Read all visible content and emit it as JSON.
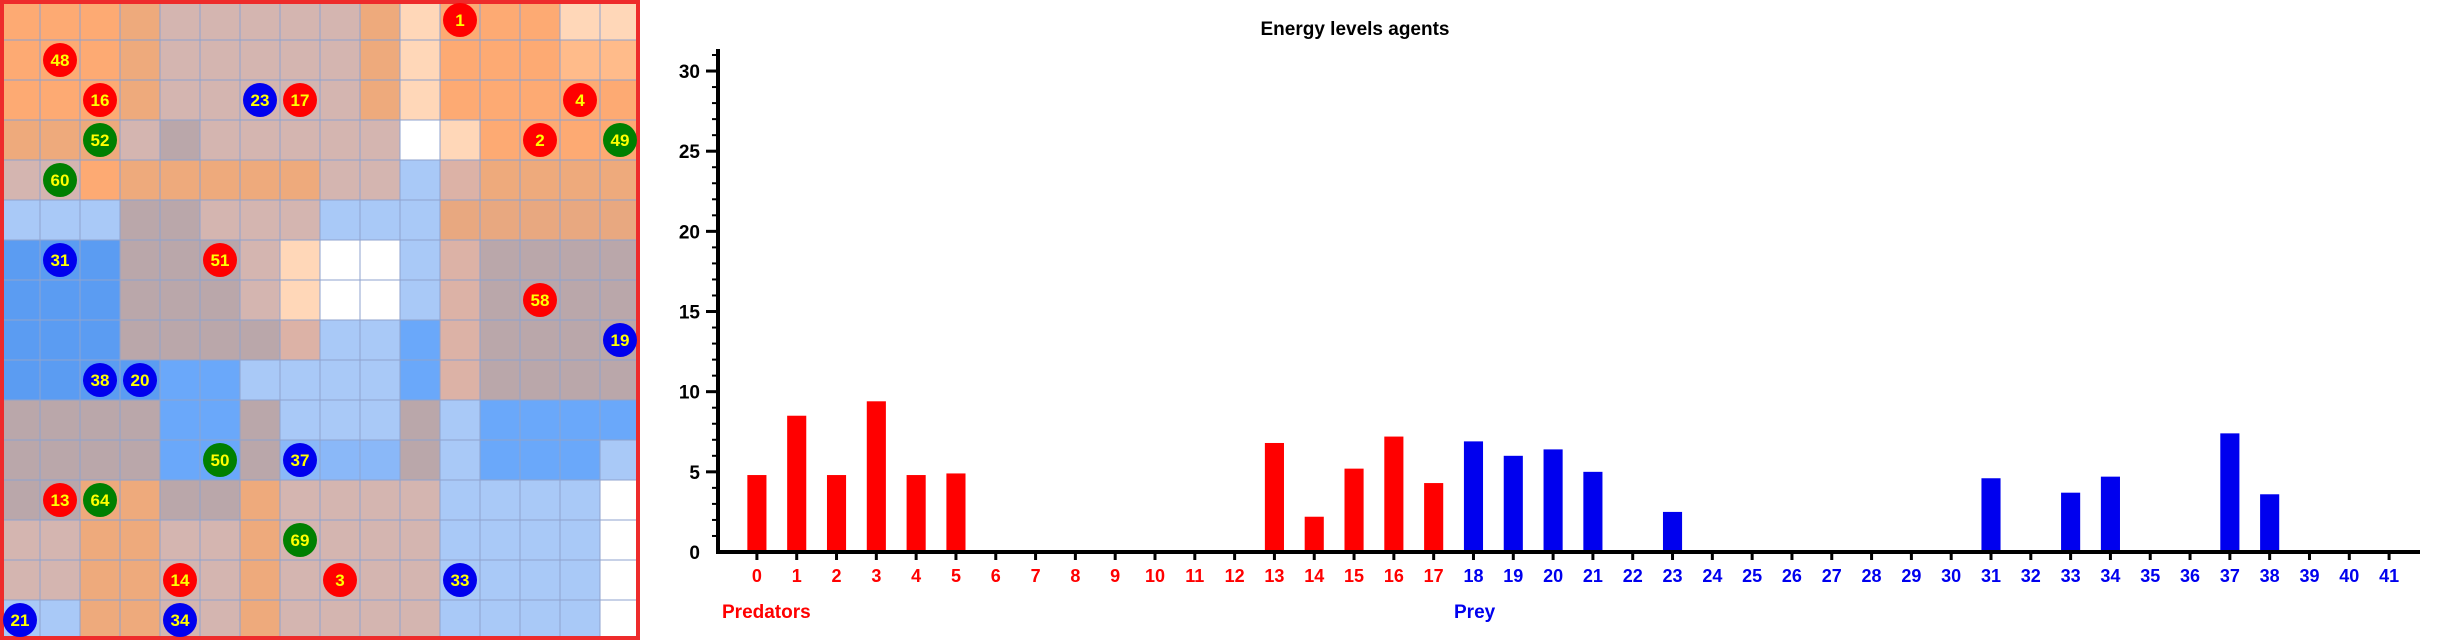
{
  "grid": {
    "size": 16,
    "palette": {
      "O1": "#ffd7b8",
      "O2": "#ffbb8a",
      "O3": "#fdaa73",
      "O4": "#eeaa7c",
      "O5": "#e8a880",
      "P1": "#dcb2a6",
      "P2": "#d4b5b0",
      "P3": "#c4aaa8",
      "M1": "#baa7aa",
      "M2": "#b3a4ab",
      "B0": "#c9d8f2",
      "B1": "#a9c9f7",
      "B2": "#8ab8f8",
      "B3": "#6aa8fa",
      "B4": "#5b9cf2",
      "W": "#ffffff"
    },
    "cells": [
      [
        "O3",
        "O3",
        "O3",
        "O4",
        "P2",
        "P2",
        "P2",
        "P2",
        "P2",
        "O4",
        "O1",
        "O3",
        "O3",
        "O3",
        "O1",
        "O1"
      ],
      [
        "O3",
        "O3",
        "O3",
        "O4",
        "P2",
        "P2",
        "P2",
        "P2",
        "P2",
        "O4",
        "O1",
        "O3",
        "O3",
        "O3",
        "O2",
        "O2"
      ],
      [
        "O3",
        "O3",
        "O3",
        "O4",
        "P2",
        "P2",
        "P2",
        "P2",
        "P2",
        "O4",
        "O1",
        "O3",
        "O3",
        "O3",
        "O3",
        "O3"
      ],
      [
        "O4",
        "O4",
        "O4",
        "P2",
        "M1",
        "P2",
        "P2",
        "P2",
        "P2",
        "P2",
        "W",
        "O1",
        "O3",
        "O3",
        "O3",
        "O3"
      ],
      [
        "P2",
        "P2",
        "O3",
        "O4",
        "O4",
        "O4",
        "O4",
        "O4",
        "P2",
        "P2",
        "B1",
        "P1",
        "O4",
        "O4",
        "O4",
        "O4"
      ],
      [
        "B1",
        "B1",
        "B1",
        "M1",
        "M1",
        "P2",
        "P2",
        "P2",
        "B1",
        "B1",
        "B1",
        "O5",
        "O5",
        "O5",
        "O5",
        "O5"
      ],
      [
        "B4",
        "B4",
        "B4",
        "M1",
        "M1",
        "M1",
        "P2",
        "O1",
        "W",
        "W",
        "B1",
        "P1",
        "M1",
        "M1",
        "M1",
        "M1"
      ],
      [
        "B4",
        "B4",
        "B4",
        "M1",
        "M1",
        "M1",
        "P2",
        "O1",
        "W",
        "W",
        "B1",
        "P1",
        "M1",
        "M1",
        "M1",
        "M1"
      ],
      [
        "B4",
        "B4",
        "B4",
        "M1",
        "M1",
        "M1",
        "M1",
        "P1",
        "B1",
        "B1",
        "B3",
        "P1",
        "M1",
        "M1",
        "M1",
        "M1"
      ],
      [
        "B4",
        "B4",
        "B4",
        "B4",
        "B3",
        "B3",
        "B1",
        "B1",
        "B1",
        "B1",
        "B3",
        "P1",
        "M1",
        "M1",
        "M1",
        "M1"
      ],
      [
        "M1",
        "M1",
        "M1",
        "M1",
        "B3",
        "B3",
        "M1",
        "B1",
        "B1",
        "B1",
        "M1",
        "B1",
        "B3",
        "B3",
        "B3",
        "B3"
      ],
      [
        "M1",
        "M1",
        "M1",
        "M1",
        "B3",
        "B3",
        "M1",
        "B2",
        "B2",
        "B2",
        "M1",
        "B1",
        "B3",
        "B3",
        "B3",
        "B1"
      ],
      [
        "M1",
        "M1",
        "O4",
        "O4",
        "M1",
        "M1",
        "O4",
        "P2",
        "P2",
        "P2",
        "P2",
        "B1",
        "B1",
        "B1",
        "B1",
        "W"
      ],
      [
        "P2",
        "P2",
        "O4",
        "O4",
        "P2",
        "P2",
        "O4",
        "P2",
        "P2",
        "P2",
        "P2",
        "B1",
        "B1",
        "B1",
        "B1",
        "W"
      ],
      [
        "P2",
        "P2",
        "O4",
        "O4",
        "P2",
        "P2",
        "O4",
        "P2",
        "P2",
        "P2",
        "P2",
        "B1",
        "B1",
        "B1",
        "B1",
        "W"
      ],
      [
        "B1",
        "B1",
        "O4",
        "O4",
        "P2",
        "P2",
        "O4",
        "P2",
        "P2",
        "P2",
        "P2",
        "B1",
        "B1",
        "B1",
        "B1",
        "W"
      ]
    ],
    "border_color": "#ee2b2b",
    "line_color": "#8fa3cf"
  },
  "agents": [
    {
      "id": "1",
      "kind": "predator",
      "col": 11,
      "row": 0
    },
    {
      "id": "48",
      "kind": "predator",
      "col": 1,
      "row": 1
    },
    {
      "id": "16",
      "kind": "predator",
      "col": 2,
      "row": 2
    },
    {
      "id": "23",
      "kind": "prey",
      "col": 6,
      "row": 2
    },
    {
      "id": "17",
      "kind": "predator",
      "col": 7,
      "row": 2
    },
    {
      "id": "4",
      "kind": "predator",
      "col": 14,
      "row": 2
    },
    {
      "id": "52",
      "kind": "neutral",
      "col": 2,
      "row": 3
    },
    {
      "id": "2",
      "kind": "predator",
      "col": 13,
      "row": 3
    },
    {
      "id": "49",
      "kind": "neutral",
      "col": 15,
      "row": 3
    },
    {
      "id": "60",
      "kind": "neutral",
      "col": 1,
      "row": 4
    },
    {
      "id": "31",
      "kind": "prey",
      "col": 1,
      "row": 6
    },
    {
      "id": "51",
      "kind": "predator",
      "col": 5,
      "row": 6
    },
    {
      "id": "58",
      "kind": "predator",
      "col": 13,
      "row": 7
    },
    {
      "id": "19",
      "kind": "prey",
      "col": 15,
      "row": 8
    },
    {
      "id": "38",
      "kind": "prey",
      "col": 2,
      "row": 9
    },
    {
      "id": "20",
      "kind": "prey",
      "col": 3,
      "row": 9
    },
    {
      "id": "50",
      "kind": "neutral",
      "col": 5,
      "row": 11
    },
    {
      "id": "37",
      "kind": "prey",
      "col": 7,
      "row": 11
    },
    {
      "id": "13",
      "kind": "predator",
      "col": 1,
      "row": 12
    },
    {
      "id": "64",
      "kind": "neutral",
      "col": 2,
      "row": 12
    },
    {
      "id": "69",
      "kind": "neutral",
      "col": 7,
      "row": 13
    },
    {
      "id": "14",
      "kind": "predator",
      "col": 4,
      "row": 14
    },
    {
      "id": "3",
      "kind": "predator",
      "col": 8,
      "row": 14
    },
    {
      "id": "33",
      "kind": "prey",
      "col": 11,
      "row": 14
    },
    {
      "id": "21",
      "kind": "prey",
      "col": 0,
      "row": 15
    },
    {
      "id": "34",
      "kind": "prey",
      "col": 4,
      "row": 15
    }
  ],
  "agent_colors": {
    "predator": "#ff0000",
    "prey": "#0000ee",
    "neutral": "#008000",
    "number": "#ffff00"
  },
  "chart_data": {
    "type": "bar",
    "title": "Energy levels agents",
    "ylim": [
      0,
      31
    ],
    "yticks": [
      "0",
      "5",
      "10",
      "15",
      "20",
      "25",
      "30"
    ],
    "categories": [
      "0",
      "1",
      "2",
      "3",
      "4",
      "5",
      "6",
      "7",
      "8",
      "9",
      "10",
      "11",
      "12",
      "13",
      "14",
      "15",
      "16",
      "17",
      "18",
      "19",
      "20",
      "21",
      "22",
      "23",
      "24",
      "25",
      "26",
      "27",
      "28",
      "29",
      "30",
      "31",
      "32",
      "33",
      "34",
      "35",
      "36",
      "37",
      "38",
      "39",
      "40",
      "41"
    ],
    "values": [
      4.8,
      8.5,
      4.8,
      9.4,
      4.8,
      4.9,
      0,
      0,
      0,
      0,
      0,
      0,
      0,
      6.8,
      2.2,
      5.2,
      7.2,
      4.3,
      6.9,
      6.0,
      6.4,
      5.0,
      0,
      2.5,
      0,
      0,
      0,
      0,
      0,
      0,
      0,
      4.6,
      0,
      3.7,
      4.7,
      0,
      0,
      7.4,
      3.6,
      0,
      0,
      0
    ],
    "predator_range": [
      0,
      17
    ],
    "prey_range": [
      18,
      41
    ],
    "groups": [
      {
        "name": "Predators",
        "color": "#ff0000"
      },
      {
        "name": "Prey",
        "color": "#0000ee"
      }
    ]
  }
}
